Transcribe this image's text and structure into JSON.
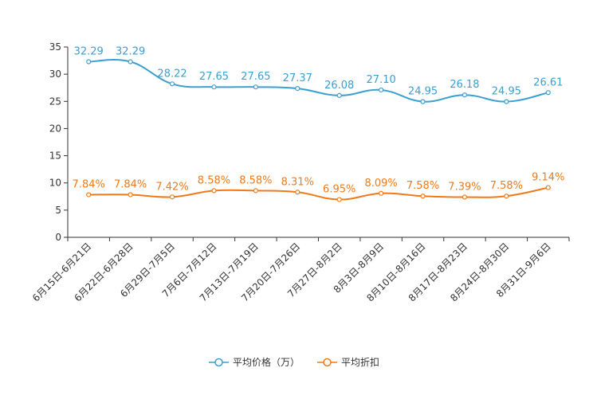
{
  "chart_data": {
    "type": "line",
    "categories": [
      "6月15日-6月21日",
      "6月22日-6月28日",
      "6月29日-7月5日",
      "7月6日-7月12日",
      "7月13日-7月19日",
      "7月20日-7月26日",
      "7月27日-8月2日",
      "8月3日-8月9日",
      "8月10日-8月16日",
      "8月17日-8月23日",
      "8月24日-8月30日",
      "8月31日-9月6日"
    ],
    "ylim": [
      0,
      35
    ],
    "yticks": [
      0,
      5,
      10,
      15,
      20,
      25,
      30,
      35
    ],
    "series": [
      {
        "name": "平均价格（万）",
        "color": "#3a9fd1",
        "values": [
          32.29,
          32.29,
          28.22,
          27.65,
          27.65,
          27.37,
          26.08,
          27.1,
          24.95,
          26.18,
          24.95,
          26.61
        ],
        "labels": [
          "32.29",
          "32.29",
          "28.22",
          "27.65",
          "27.65",
          "27.37",
          "26.08",
          "27.10",
          "24.95",
          "26.18",
          "24.95",
          "26.61"
        ]
      },
      {
        "name": "平均折扣",
        "color": "#f07a18",
        "values": [
          7.84,
          7.84,
          7.42,
          8.58,
          8.58,
          8.31,
          6.95,
          8.09,
          7.58,
          7.39,
          7.58,
          9.14
        ],
        "labels": [
          "7.84%",
          "7.84%",
          "7.42%",
          "8.58%",
          "8.58%",
          "8.31%",
          "6.95%",
          "8.09%",
          "7.58%",
          "7.39%",
          "7.58%",
          "9.14%"
        ]
      }
    ],
    "legend": "bottom-center",
    "grid": false
  }
}
